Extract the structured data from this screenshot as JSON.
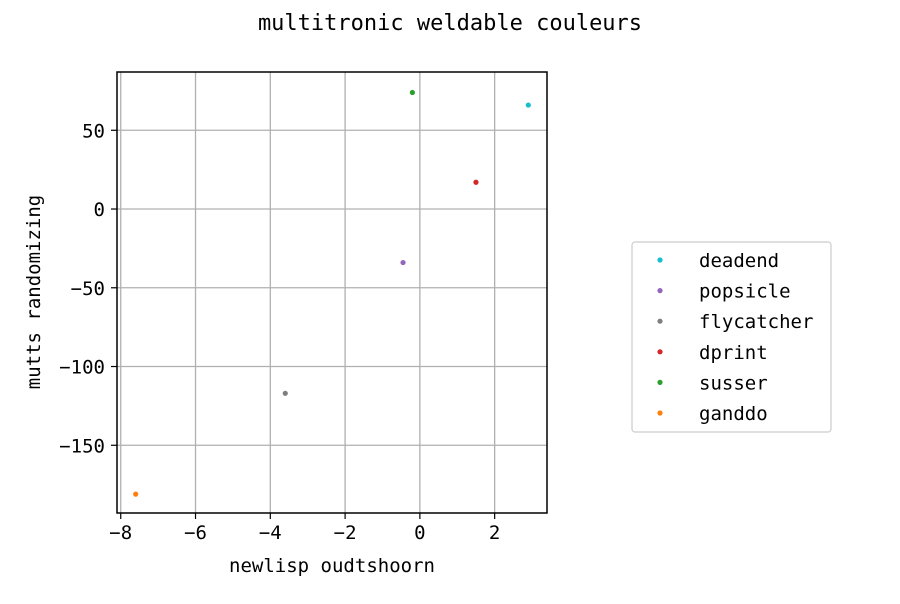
{
  "chart_data": {
    "type": "scatter",
    "title": "multitronic weldable couleurs",
    "xlabel": "newlisp oudtshoorn",
    "ylabel": "mutts randomizing",
    "xlim": [
      -8.1,
      3.4
    ],
    "ylim": [
      -193,
      87
    ],
    "xticks": [
      -8,
      -6,
      -4,
      -2,
      0,
      2
    ],
    "yticks": [
      50,
      0,
      -50,
      -100,
      -150
    ],
    "grid": true,
    "legend_position": "right",
    "series": [
      {
        "name": "deadend",
        "color": "#17becf",
        "x": [
          2.9
        ],
        "y": [
          66
        ]
      },
      {
        "name": "popsicle",
        "color": "#9467bd",
        "x": [
          -0.45
        ],
        "y": [
          -34
        ]
      },
      {
        "name": "flycatcher",
        "color": "#7f7f7f",
        "x": [
          -3.6
        ],
        "y": [
          -117
        ]
      },
      {
        "name": "dprint",
        "color": "#d62728",
        "x": [
          1.5
        ],
        "y": [
          17
        ]
      },
      {
        "name": "susser",
        "color": "#2ca02c",
        "x": [
          -0.2
        ],
        "y": [
          74
        ]
      },
      {
        "name": "ganddo",
        "color": "#ff7f0e",
        "x": [
          -7.6
        ],
        "y": [
          -181
        ]
      }
    ]
  }
}
